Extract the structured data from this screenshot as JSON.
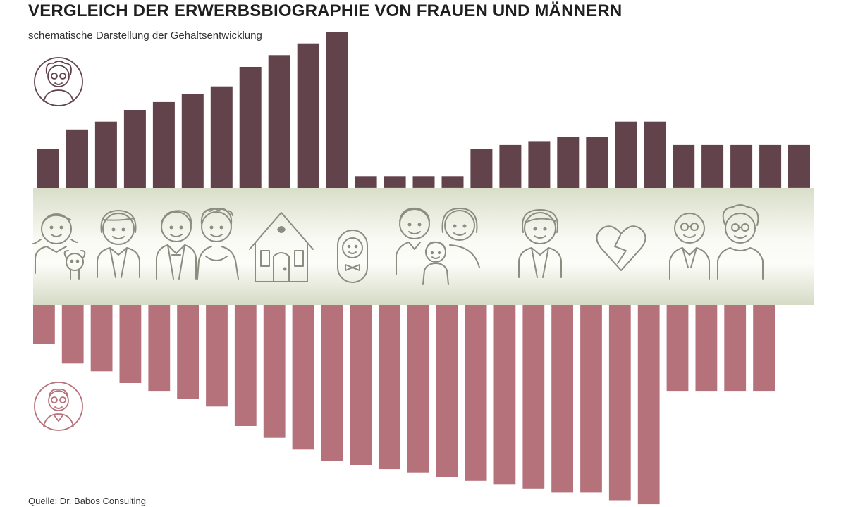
{
  "title": "VERGLEICH DER ERWERBSBIOGRAPHIE VON FRAUEN UND MÄNNERN",
  "subtitle": "schematische Darstellung der Gehaltsentwicklung",
  "source": "Quelle: Dr. Babos Consulting",
  "colors": {
    "women": "#62434b",
    "men": "#b5727b",
    "band_light": "#fbfbf6",
    "band_dark": "#d8ddc8",
    "icon": "#8a8d80"
  },
  "icons": [
    "woman-avatar-icon",
    "man-avatar-icon",
    "girl-with-dog-icon",
    "young-woman-icon",
    "wedding-couple-icon",
    "house-icon",
    "baby-icon",
    "family-icon",
    "businesswoman-icon",
    "broken-heart-icon",
    "senior-couple-icon"
  ],
  "chart_data": {
    "type": "bar",
    "title": "VERGLEICH DER ERWERBSBIOGRAPHIE VON FRAUEN UND MÄNNERN",
    "subtitle": "schematische Darstellung der Gehaltsentwicklung",
    "xlabel": "",
    "ylabel": "",
    "series": [
      {
        "values": [
          10,
          15,
          17,
          20,
          22,
          24,
          26,
          31,
          34,
          37,
          40,
          3,
          3,
          3,
          3,
          10,
          11,
          12,
          13,
          13,
          17,
          17,
          11,
          11,
          11,
          11,
          11
        ]
      },
      {
        "values": [
          10,
          15,
          17,
          20,
          22,
          24,
          26,
          31,
          34,
          37,
          40,
          41,
          42,
          43,
          44,
          45,
          46,
          47,
          48,
          48,
          50,
          51,
          22,
          22,
          22,
          22
        ]
      }
    ]
  }
}
